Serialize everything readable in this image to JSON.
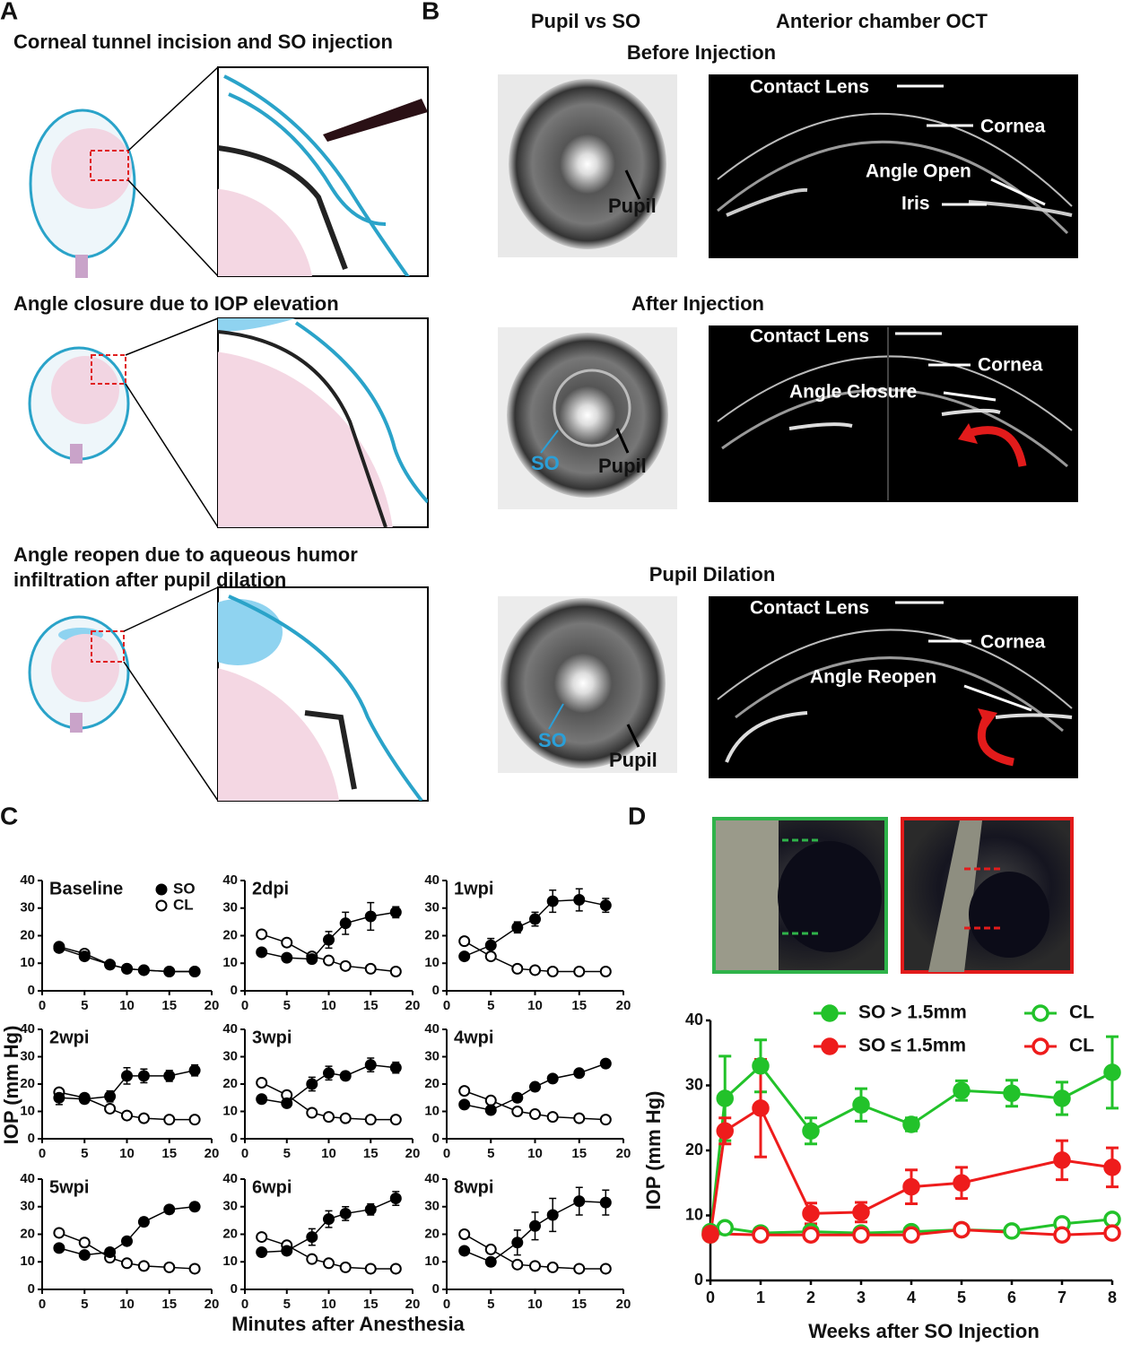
{
  "panel_a": {
    "letter": "A",
    "steps": [
      {
        "title_lines": [
          "Corneal tunnel incision and SO injection"
        ]
      },
      {
        "title_lines": [
          "Angle closure due to IOP elevation"
        ]
      },
      {
        "title_lines": [
          "Angle reopen due to aqueous humor",
          "infiltration after pupil dilation"
        ]
      }
    ]
  },
  "panel_b": {
    "letter": "B",
    "columns": [
      "Pupil vs SO",
      "Anterior chamber OCT"
    ],
    "rows": [
      {
        "title": "Before Injection",
        "pupil_labels": [
          "Pupil"
        ],
        "oct_labels": [
          "Contact Lens",
          "Cornea",
          "Angle Open",
          "Iris"
        ]
      },
      {
        "title": "After Injection",
        "pupil_labels": [
          "SO",
          "Pupil"
        ],
        "oct_labels": [
          "Contact Lens",
          "Cornea",
          "Angle Closure"
        ]
      },
      {
        "title": "Pupil Dilation",
        "pupil_labels": [
          "SO",
          "Pupil"
        ],
        "oct_labels": [
          "Contact Lens",
          "Cornea",
          "Angle Reopen"
        ]
      }
    ]
  },
  "panel_c": {
    "letter": "C",
    "y_label": "IOP (mm Hg)",
    "x_label": "Minutes after Anesthesia"
  },
  "panel_d": {
    "letter": "D",
    "y_label": "IOP (mm Hg)",
    "x_label": "Weeks after SO Injection"
  },
  "chart_data": [
    {
      "type": "line",
      "title": "Baseline",
      "x": [
        2,
        5,
        8,
        10,
        12,
        15,
        18
      ],
      "xlim": [
        0,
        20
      ],
      "xticks": [
        0,
        5,
        10,
        15,
        20
      ],
      "ylim": [
        0,
        40
      ],
      "yticks": [
        0,
        10,
        20,
        30,
        40
      ],
      "legend": "upper right",
      "series": [
        {
          "name": "SO",
          "color": "#000000",
          "marker": "filled",
          "values": [
            15.5,
            12.5,
            9.5,
            8,
            7.5,
            7,
            7
          ],
          "errors": [
            0.5,
            0.5,
            0.5,
            0.5,
            0.5,
            0.5,
            0.5
          ]
        },
        {
          "name": "CL",
          "color": "#000000",
          "marker": "open",
          "values": [
            16,
            13.5,
            9.5,
            8,
            7.5,
            7,
            7
          ]
        }
      ]
    },
    {
      "type": "line",
      "title": "2dpi",
      "x": [
        2,
        5,
        8,
        10,
        12,
        15,
        18
      ],
      "xlim": [
        0,
        20
      ],
      "xticks": [
        0,
        5,
        10,
        15,
        20
      ],
      "ylim": [
        0,
        40
      ],
      "yticks": [
        0,
        10,
        20,
        30,
        40
      ],
      "series": [
        {
          "color": "#000000",
          "marker": "filled",
          "values": [
            14,
            12,
            11.5,
            18.5,
            24.5,
            27,
            28.5
          ],
          "errors": [
            0.5,
            0.5,
            1,
            3,
            4,
            5,
            2
          ]
        },
        {
          "color": "#000000",
          "marker": "open",
          "values": [
            20.5,
            17.5,
            12.5,
            11,
            9,
            8,
            7
          ]
        }
      ]
    },
    {
      "type": "line",
      "title": "1wpi",
      "x": [
        2,
        5,
        8,
        10,
        12,
        15,
        18
      ],
      "xlim": [
        0,
        20
      ],
      "xticks": [
        0,
        5,
        10,
        15,
        20
      ],
      "ylim": [
        0,
        40
      ],
      "yticks": [
        0,
        10,
        20,
        30,
        40
      ],
      "series": [
        {
          "color": "#000000",
          "marker": "filled",
          "values": [
            12.5,
            16.5,
            23,
            26,
            32.5,
            33,
            31
          ],
          "errors": [
            1,
            2.5,
            2,
            2.5,
            4,
            4,
            2.5
          ]
        },
        {
          "color": "#000000",
          "marker": "open",
          "values": [
            18,
            12.5,
            8,
            7.5,
            7,
            7,
            7
          ]
        }
      ]
    },
    {
      "type": "line",
      "title": "2wpi",
      "x": [
        2,
        5,
        8,
        10,
        12,
        15,
        18
      ],
      "xlim": [
        0,
        20
      ],
      "xticks": [
        0,
        5,
        10,
        15,
        20
      ],
      "ylim": [
        0,
        40
      ],
      "yticks": [
        0,
        10,
        20,
        30,
        40
      ],
      "series": [
        {
          "color": "#000000",
          "marker": "filled",
          "values": [
            15,
            14.5,
            15.5,
            23,
            23,
            23,
            25
          ],
          "errors": [
            2.5,
            1.5,
            2,
            3,
            2.5,
            2,
            2
          ]
        },
        {
          "color": "#000000",
          "marker": "open",
          "values": [
            17,
            15,
            11,
            8.5,
            7.5,
            7,
            7
          ]
        }
      ]
    },
    {
      "type": "line",
      "title": "3wpi",
      "x": [
        2,
        5,
        8,
        10,
        12,
        15,
        18
      ],
      "xlim": [
        0,
        20
      ],
      "xticks": [
        0,
        5,
        10,
        15,
        20
      ],
      "ylim": [
        0,
        40
      ],
      "yticks": [
        0,
        10,
        20,
        30,
        40
      ],
      "series": [
        {
          "color": "#000000",
          "marker": "filled",
          "values": [
            14.5,
            13,
            20,
            24,
            23,
            27,
            26
          ],
          "errors": [
            1,
            1,
            2.5,
            2.5,
            1.5,
            2.5,
            2
          ]
        },
        {
          "color": "#000000",
          "marker": "open",
          "values": [
            20.5,
            16,
            9.5,
            8,
            7.5,
            7,
            7
          ]
        }
      ]
    },
    {
      "type": "line",
      "title": "4wpi",
      "x": [
        2,
        5,
        8,
        10,
        12,
        15,
        18
      ],
      "xlim": [
        0,
        20
      ],
      "xticks": [
        0,
        5,
        10,
        15,
        20
      ],
      "ylim": [
        0,
        40
      ],
      "yticks": [
        0,
        10,
        20,
        30,
        40
      ],
      "series": [
        {
          "color": "#000000",
          "marker": "filled",
          "values": [
            12.5,
            10.5,
            15,
            19,
            22,
            24,
            27.5
          ],
          "errors": [
            1,
            1,
            1.5,
            1.5,
            1,
            1,
            1
          ]
        },
        {
          "color": "#000000",
          "marker": "open",
          "values": [
            17.5,
            14,
            10,
            9,
            8,
            7.5,
            7
          ]
        }
      ]
    },
    {
      "type": "line",
      "title": "5wpi",
      "x": [
        2,
        5,
        8,
        10,
        12,
        15,
        18
      ],
      "xlim": [
        0,
        20
      ],
      "xticks": [
        0,
        5,
        10,
        15,
        20
      ],
      "ylim": [
        0,
        40
      ],
      "yticks": [
        0,
        10,
        20,
        30,
        40
      ],
      "series": [
        {
          "color": "#000000",
          "marker": "filled",
          "values": [
            15,
            12.5,
            13.5,
            17.5,
            24.5,
            29,
            30
          ],
          "errors": [
            1,
            1,
            1,
            1,
            1.5,
            1.5,
            1.5
          ]
        },
        {
          "color": "#000000",
          "marker": "open",
          "values": [
            20.5,
            17,
            11.5,
            9.5,
            8.5,
            8,
            7.5
          ]
        }
      ]
    },
    {
      "type": "line",
      "title": "6wpi",
      "x": [
        2,
        5,
        8,
        10,
        12,
        15,
        18
      ],
      "xlim": [
        0,
        20
      ],
      "xticks": [
        0,
        5,
        10,
        15,
        20
      ],
      "ylim": [
        0,
        40
      ],
      "yticks": [
        0,
        10,
        20,
        30,
        40
      ],
      "series": [
        {
          "color": "#000000",
          "marker": "filled",
          "values": [
            13.5,
            14,
            19,
            25.5,
            27.5,
            29,
            33
          ],
          "errors": [
            1,
            1,
            3,
            3,
            2.5,
            2,
            2.5
          ]
        },
        {
          "color": "#000000",
          "marker": "open",
          "values": [
            19,
            16,
            11,
            9.5,
            8,
            7.5,
            7.5
          ]
        }
      ]
    },
    {
      "type": "line",
      "title": "8wpi",
      "x": [
        2,
        5,
        8,
        10,
        12,
        15,
        18
      ],
      "xlim": [
        0,
        20
      ],
      "xticks": [
        0,
        5,
        10,
        15,
        20
      ],
      "ylim": [
        0,
        40
      ],
      "yticks": [
        0,
        10,
        20,
        30,
        40
      ],
      "series": [
        {
          "color": "#000000",
          "marker": "filled",
          "values": [
            14,
            10,
            17,
            23,
            27,
            32,
            31.5
          ],
          "errors": [
            1,
            1,
            4.5,
            5,
            6,
            5,
            4.5
          ]
        },
        {
          "color": "#000000",
          "marker": "open",
          "values": [
            20,
            14.5,
            9,
            8.5,
            8,
            7.5,
            7.5
          ]
        }
      ]
    },
    {
      "type": "line",
      "xlim": [
        0,
        8
      ],
      "xticks": [
        0,
        1,
        2,
        3,
        4,
        5,
        6,
        7,
        8
      ],
      "ylim": [
        0,
        40
      ],
      "yticks": [
        0,
        10,
        20,
        30,
        40
      ],
      "legend": "upper center",
      "series": [
        {
          "name": "SO > 1.5mm",
          "color": "#22c22a",
          "marker": "filled",
          "x": [
            0,
            0.29,
            1,
            2,
            3,
            4,
            5,
            6,
            7,
            8
          ],
          "values": [
            7,
            28,
            33,
            23,
            27,
            24,
            29.2,
            28.8,
            28,
            32
          ],
          "errors": [
            0.5,
            6.5,
            4,
            2,
            2.5,
            1,
            1.5,
            2,
            2.5,
            5.5
          ]
        },
        {
          "name": "SO ≤ 1.5mm",
          "color": "#ee1c1c",
          "marker": "filled",
          "x": [
            0,
            0.29,
            1,
            2,
            3,
            4,
            5,
            7,
            8
          ],
          "values": [
            7,
            23,
            26.5,
            10.3,
            10.5,
            14.4,
            15,
            18.5,
            17.4
          ],
          "errors": [
            0.5,
            2,
            7.5,
            1.6,
            1.5,
            2.6,
            2.4,
            3,
            3
          ]
        },
        {
          "name": "CL",
          "color": "#22c22a",
          "marker": "open",
          "x": [
            0,
            0.29,
            1,
            2,
            3,
            4,
            5,
            6,
            7,
            8
          ],
          "values": [
            7.5,
            8.1,
            7.3,
            7.5,
            7.3,
            7.5,
            7.8,
            7.6,
            8.7,
            9.4
          ]
        },
        {
          "name": "CL",
          "color": "#ee1c1c",
          "marker": "open",
          "x": [
            0,
            1,
            2,
            3,
            4,
            5,
            7,
            8
          ],
          "values": [
            7.2,
            7,
            7,
            7,
            7,
            7.8,
            7,
            7.3
          ]
        }
      ]
    }
  ]
}
